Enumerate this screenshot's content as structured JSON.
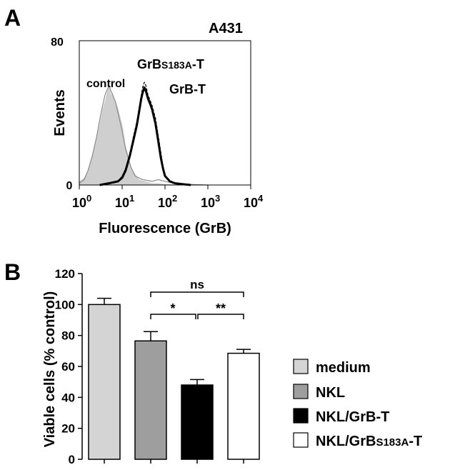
{
  "panel_a": {
    "label": "A",
    "cell_line": "A431",
    "ylabel": "Events",
    "xlabel": "Fluorescence (GrB)",
    "y_ticks": [
      "0",
      "80"
    ],
    "x_ticks": [
      {
        "base": "10",
        "exp": "0"
      },
      {
        "base": "10",
        "exp": "1"
      },
      {
        "base": "10",
        "exp": "2"
      },
      {
        "base": "10",
        "exp": "3"
      },
      {
        "base": "10",
        "exp": "4"
      }
    ],
    "annotations": {
      "control": "control",
      "grbs_main": "GrB",
      "grbs_sub": "S183A",
      "grbs_tail": "-T",
      "grb_t": "GrB-T"
    }
  },
  "panel_b": {
    "label": "B",
    "ylabel": "Viable cells  (% control)",
    "significance": [
      "ns",
      "*",
      "**"
    ],
    "legend": [
      {
        "label": "medium",
        "color": "#d4d4d4"
      },
      {
        "label": "NKL",
        "color": "#9e9e9e"
      },
      {
        "label": "NKL/GrB-T",
        "color": "#000000"
      },
      {
        "main": "NKL/GrB",
        "sub": "S183A",
        "tail": "-T",
        "color": "#ffffff"
      }
    ]
  },
  "chart_data": [
    {
      "type": "area",
      "title": "A431",
      "xlabel": "Fluorescence (GrB)",
      "ylabel": "Events",
      "x_scale": "log",
      "xlim": [
        1,
        10000
      ],
      "ylim": [
        0,
        80
      ],
      "grid": false,
      "series": [
        {
          "name": "control",
          "style": "grey filled area",
          "x": [
            1,
            1.3,
            1.6,
            2,
            2.5,
            3,
            3.5,
            4,
            4.5,
            5,
            5.5,
            6,
            6.5,
            7,
            8,
            9,
            10,
            11,
            12,
            14,
            16,
            20,
            25,
            35,
            50,
            70,
            100,
            200,
            1000
          ],
          "y": [
            2,
            4,
            8,
            16,
            25,
            34,
            42,
            47,
            52,
            55,
            50,
            51,
            48,
            46,
            43,
            38,
            34,
            28,
            22,
            16,
            10,
            6,
            3,
            2,
            1,
            1,
            0.5,
            0.2,
            0
          ]
        },
        {
          "name": "control",
          "style": "thin grey line",
          "x": [
            1,
            1.3,
            1.6,
            2,
            2.5,
            3,
            3.5,
            4,
            4.5,
            5,
            5.5,
            6,
            7,
            8,
            10,
            12,
            16,
            20,
            30,
            50,
            70,
            100,
            200,
            1000
          ],
          "y": [
            1,
            3,
            8,
            16,
            26,
            36,
            44,
            50,
            53,
            55,
            52,
            50,
            46,
            40,
            30,
            20,
            10,
            5,
            3,
            2,
            3,
            2,
            0.5,
            0
          ]
        },
        {
          "name": "GrBS183A-T",
          "style": "thin dashed line",
          "x": [
            3,
            5,
            8,
            10,
            12,
            15,
            18,
            22,
            25,
            28,
            30,
            33,
            36,
            40,
            45,
            50,
            60,
            70,
            80,
            90,
            100,
            150,
            300
          ],
          "y": [
            0,
            1,
            2,
            5,
            9,
            17,
            26,
            35,
            43,
            50,
            54,
            57,
            55,
            50,
            47,
            44,
            37,
            27,
            18,
            10,
            5,
            1,
            0
          ]
        },
        {
          "name": "GrB-T",
          "style": "thick black line",
          "x": [
            3,
            5,
            8,
            10,
            12,
            15,
            18,
            22,
            25,
            28,
            30,
            33,
            36,
            40,
            45,
            50,
            60,
            70,
            80,
            90,
            100,
            130,
            170,
            250,
            400
          ],
          "y": [
            0,
            1,
            2,
            4,
            8,
            16,
            24,
            33,
            41,
            48,
            51,
            54,
            52,
            48,
            45,
            42,
            34,
            24,
            15,
            9,
            5,
            2,
            1,
            0.5,
            0
          ]
        }
      ]
    },
    {
      "type": "bar",
      "ylabel": "Viable cells  (% control)",
      "ylim": [
        0,
        120
      ],
      "y_ticks": [
        0,
        20,
        40,
        60,
        80,
        100,
        120
      ],
      "categories": [
        "medium",
        "NKL",
        "NKL/GrB-T",
        "NKL/GrBS183A-T"
      ],
      "values": [
        100,
        76.5,
        48,
        68.5
      ],
      "errors": [
        4,
        6,
        3.5,
        2.5
      ],
      "colors": [
        "#d4d4d4",
        "#9e9e9e",
        "#000000",
        "#ffffff"
      ],
      "legend_position": "right",
      "significance": [
        {
          "from": "NKL",
          "to": "NKL/GrBS183A-T",
          "label": "ns"
        },
        {
          "from": "NKL",
          "to": "NKL/GrB-T",
          "label": "*"
        },
        {
          "from": "NKL/GrB-T",
          "to": "NKL/GrBS183A-T",
          "label": "**"
        }
      ]
    }
  ]
}
